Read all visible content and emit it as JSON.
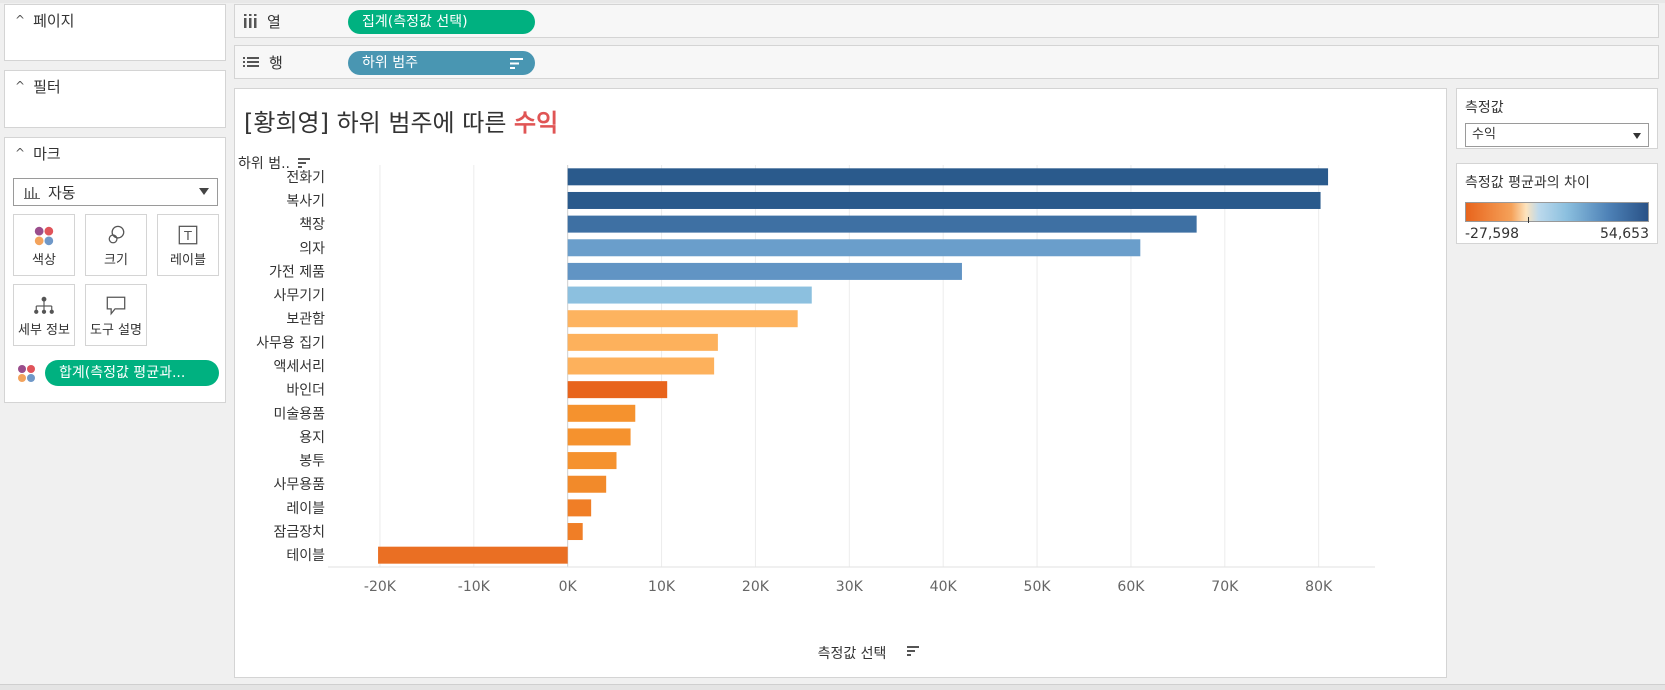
{
  "left_panel": {
    "pages": {
      "title": "페이지"
    },
    "filters": {
      "title": "필터"
    },
    "marks": {
      "title": "마크",
      "mark_type": "자동",
      "buttons": [
        {
          "label": "색상",
          "icon": "color-dots-icon"
        },
        {
          "label": "크기",
          "icon": "size-circles-icon"
        },
        {
          "label": "레이블",
          "icon": "label-t-icon"
        },
        {
          "label": "세부 정보",
          "icon": "detail-tree-icon"
        },
        {
          "label": "도구 설명",
          "icon": "tooltip-bubble-icon"
        }
      ],
      "color_pill": "합계(측정값 평균과..."
    }
  },
  "shelves": {
    "columns": {
      "label": "열",
      "pill": "집계(측정값 선택)"
    },
    "rows": {
      "label": "행",
      "pill": "하위 범주"
    }
  },
  "sheet": {
    "title_prefix": "[황희영] 하위 범주에 따른 ",
    "title_accent": "수익",
    "row_header": "하위 범.."
  },
  "parameter_card": {
    "title": "측정값",
    "value": "수익"
  },
  "legend_card": {
    "title": "측정값 평균과의 차이",
    "min_label": "-27,598",
    "max_label": "54,653",
    "colors": [
      "#e8641c",
      "#fde3bd",
      "#8cc0df",
      "#295287"
    ]
  },
  "chart_data": {
    "type": "bar",
    "orientation": "horizontal",
    "xlabel": "측정값 선택",
    "xlim": [
      -25000,
      86000
    ],
    "xticks": [
      -20000,
      -10000,
      0,
      10000,
      20000,
      30000,
      40000,
      50000,
      60000,
      70000,
      80000
    ],
    "xtick_labels": [
      "-20K",
      "-10K",
      "0K",
      "10K",
      "20K",
      "30K",
      "40K",
      "50K",
      "60K",
      "70K",
      "80K"
    ],
    "categories": [
      "전화기",
      "복사기",
      "책장",
      "의자",
      "가전 제품",
      "사무기기",
      "보관함",
      "사무용 집기",
      "액세서리",
      "바인더",
      "미술용품",
      "용지",
      "봉투",
      "사무용품",
      "레이블",
      "잠금장치",
      "테이블"
    ],
    "values": [
      81000,
      80200,
      67000,
      61000,
      42000,
      26000,
      24500,
      16000,
      15600,
      10600,
      7200,
      6700,
      5200,
      4100,
      2500,
      1600,
      -20200
    ],
    "colors": [
      "#2a5a8c",
      "#2a5a8c",
      "#3e70a3",
      "#6a9ecb",
      "#6194c4",
      "#8cc0df",
      "#fdb35f",
      "#fdb15c",
      "#fdb15c",
      "#e8641c",
      "#f5922e",
      "#f5922e",
      "#f5922e",
      "#f28a2a",
      "#f07e26",
      "#f07e26",
      "#ea6f23"
    ]
  }
}
